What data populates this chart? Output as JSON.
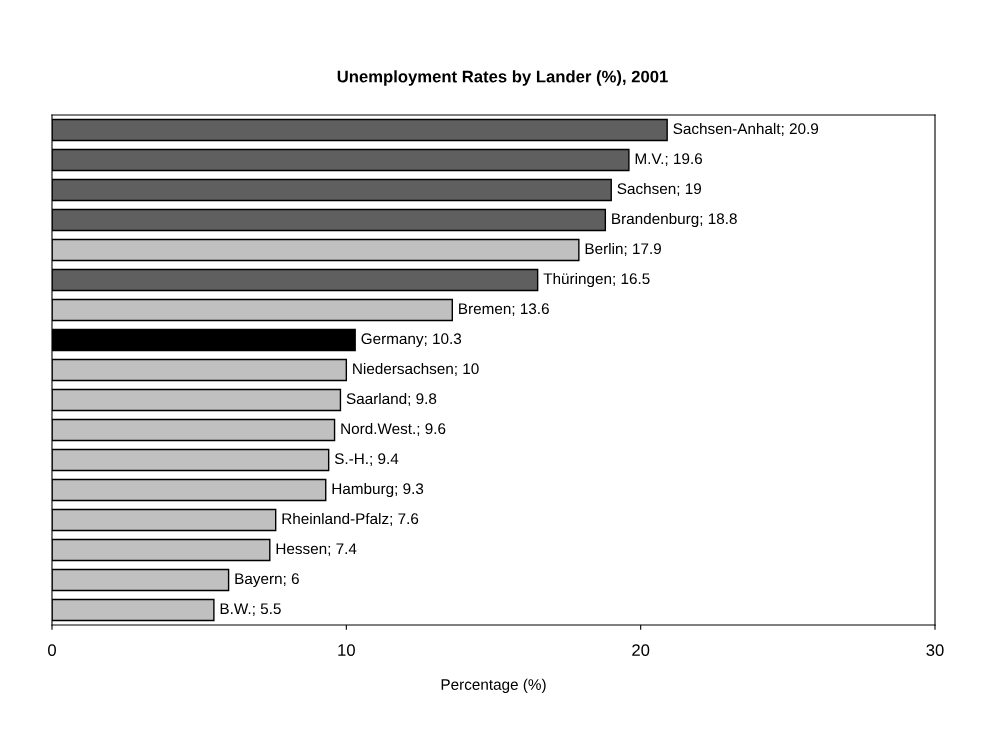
{
  "chart_data": {
    "type": "bar",
    "orientation": "horizontal",
    "title": "Unemployment Rates by Lander (%), 2001",
    "xlabel": "Percentage (%)",
    "categories": [
      null,
      null,
      null,
      null,
      null,
      null,
      null,
      null,
      null,
      null,
      null,
      null,
      null,
      null,
      null,
      null,
      null
    ],
    "values": [
      20.9,
      19.6,
      19,
      18.8,
      17.9,
      16.5,
      13.6,
      10.3,
      10,
      9.8,
      9.6,
      9.4,
      9.3,
      7.6,
      7.4,
      6,
      5.5
    ],
    "value_labels": [
      "Sachsen-Anhalt; 20.9",
      "M.V.; 19.6",
      "Sachsen; 19",
      "Brandenburg; 18.8",
      "Berlin; 17.9",
      "Thüringen; 16.5",
      "Bremen; 13.6",
      "Germany; 10.3",
      "Niedersachsen; 10",
      "Saarland; 9.8",
      "Nord.West.; 9.6",
      "S.-H.; 9.4",
      "Hamburg; 9.3",
      "Rheinland-Pfalz; 7.6",
      "Hessen; 7.4",
      "Bayern; 6",
      "B.W.; 5.5"
    ],
    "colors": [
      "#5f5f5f",
      "#5f5f5f",
      "#5f5f5f",
      "#5f5f5f",
      "#c0c0c0",
      "#5f5f5f",
      "#c0c0c0",
      "#000000",
      "#c0c0c0",
      "#c0c0c0",
      "#c0c0c0",
      "#c0c0c0",
      "#c0c0c0",
      "#c0c0c0",
      "#c0c0c0",
      "#c0c0c0",
      "#c0c0c0"
    ],
    "xlim": [
      0,
      30
    ],
    "xticks": [
      0,
      10,
      20,
      30
    ],
    "grid": false,
    "legend": false
  }
}
